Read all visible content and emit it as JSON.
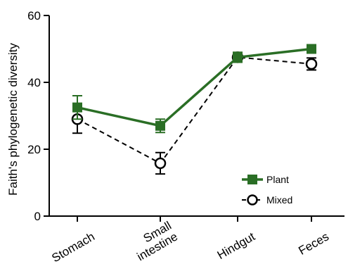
{
  "chart_data": {
    "type": "line",
    "categories": [
      "Stomach",
      "Small\nintestine",
      "Hindgut",
      "Feces"
    ],
    "ylabel": "Faith's phylogenetic diversity",
    "xlabel": "",
    "ylim": [
      0,
      60
    ],
    "yticks": [
      0,
      20,
      40,
      60
    ],
    "grid": false,
    "legend_position": "bottom-right",
    "series": [
      {
        "name": "Plant",
        "values": [
          32.5,
          27.0,
          47.5,
          50.0
        ],
        "errors": [
          3.5,
          2.0,
          1.5,
          1.0
        ],
        "color": "#2a6e25",
        "marker": "filled-square",
        "line_style": "solid"
      },
      {
        "name": "Mixed",
        "values": [
          29.0,
          15.8,
          47.5,
          45.5
        ],
        "errors": [
          4.2,
          3.2,
          1.0,
          1.8
        ],
        "color": "#000000",
        "marker": "open-circle",
        "line_style": "dashed"
      }
    ]
  }
}
